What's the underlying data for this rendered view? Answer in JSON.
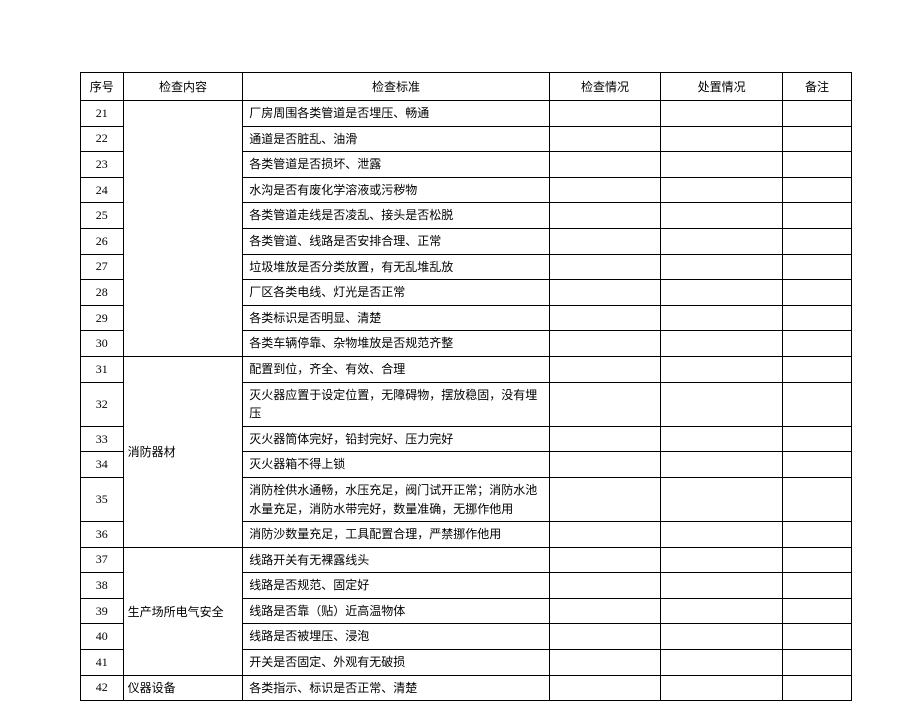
{
  "header": {
    "seq": "序号",
    "content": "检查内容",
    "standard": "检查标准",
    "check": "检查情况",
    "handle": "处置情况",
    "note": "备注"
  },
  "groups": {
    "fire": "消防器材",
    "electric": "生产场所电气安全",
    "equipment": "仪器设备"
  },
  "rows": {
    "r21": {
      "seq": "21",
      "standard": "厂房周围各类管道是否埋压、畅通"
    },
    "r22": {
      "seq": "22",
      "standard": "通道是否脏乱、油滑"
    },
    "r23": {
      "seq": "23",
      "standard": "各类管道是否损坏、泄露"
    },
    "r24": {
      "seq": "24",
      "standard": "水沟是否有废化学溶液或污秽物"
    },
    "r25": {
      "seq": "25",
      "standard": "各类管道走线是否凌乱、接头是否松脱"
    },
    "r26": {
      "seq": "26",
      "standard": "各类管道、线路是否安排合理、正常"
    },
    "r27": {
      "seq": "27",
      "standard": "垃圾堆放是否分类放置，有无乱堆乱放"
    },
    "r28": {
      "seq": "28",
      "standard": "厂区各类电线、灯光是否正常"
    },
    "r29": {
      "seq": "29",
      "standard": "各类标识是否明显、清楚"
    },
    "r30": {
      "seq": "30",
      "standard": "各类车辆停靠、杂物堆放是否规范齐整"
    },
    "r31": {
      "seq": "31",
      "standard": "配置到位，齐全、有效、合理"
    },
    "r32": {
      "seq": "32",
      "standard": "灭火器应置于设定位置，无障碍物，摆放稳固，没有埋压"
    },
    "r33": {
      "seq": "33",
      "standard": "灭火器筒体完好，铅封完好、压力完好"
    },
    "r34": {
      "seq": "34",
      "standard": "灭火器箱不得上锁"
    },
    "r35": {
      "seq": "35",
      "standard": "消防栓供水通畅，水压充足，阀门试开正常；消防水池水量充足，消防水带完好，数量准确，无挪作他用"
    },
    "r36": {
      "seq": "36",
      "standard": "消防沙数量充足，工具配置合理，严禁挪作他用"
    },
    "r37": {
      "seq": "37",
      "standard": "线路开关有无裸露线头"
    },
    "r38": {
      "seq": "38",
      "standard": "线路是否规范、固定好"
    },
    "r39": {
      "seq": "39",
      "standard": "线路是否靠（贴）近高温物体"
    },
    "r40": {
      "seq": "40",
      "standard": "线路是否被埋压、浸泡"
    },
    "r41": {
      "seq": "41",
      "standard": "开关是否固定、外观有无破损"
    },
    "r42": {
      "seq": "42",
      "standard": "各类指示、标识是否正常、清楚"
    }
  }
}
